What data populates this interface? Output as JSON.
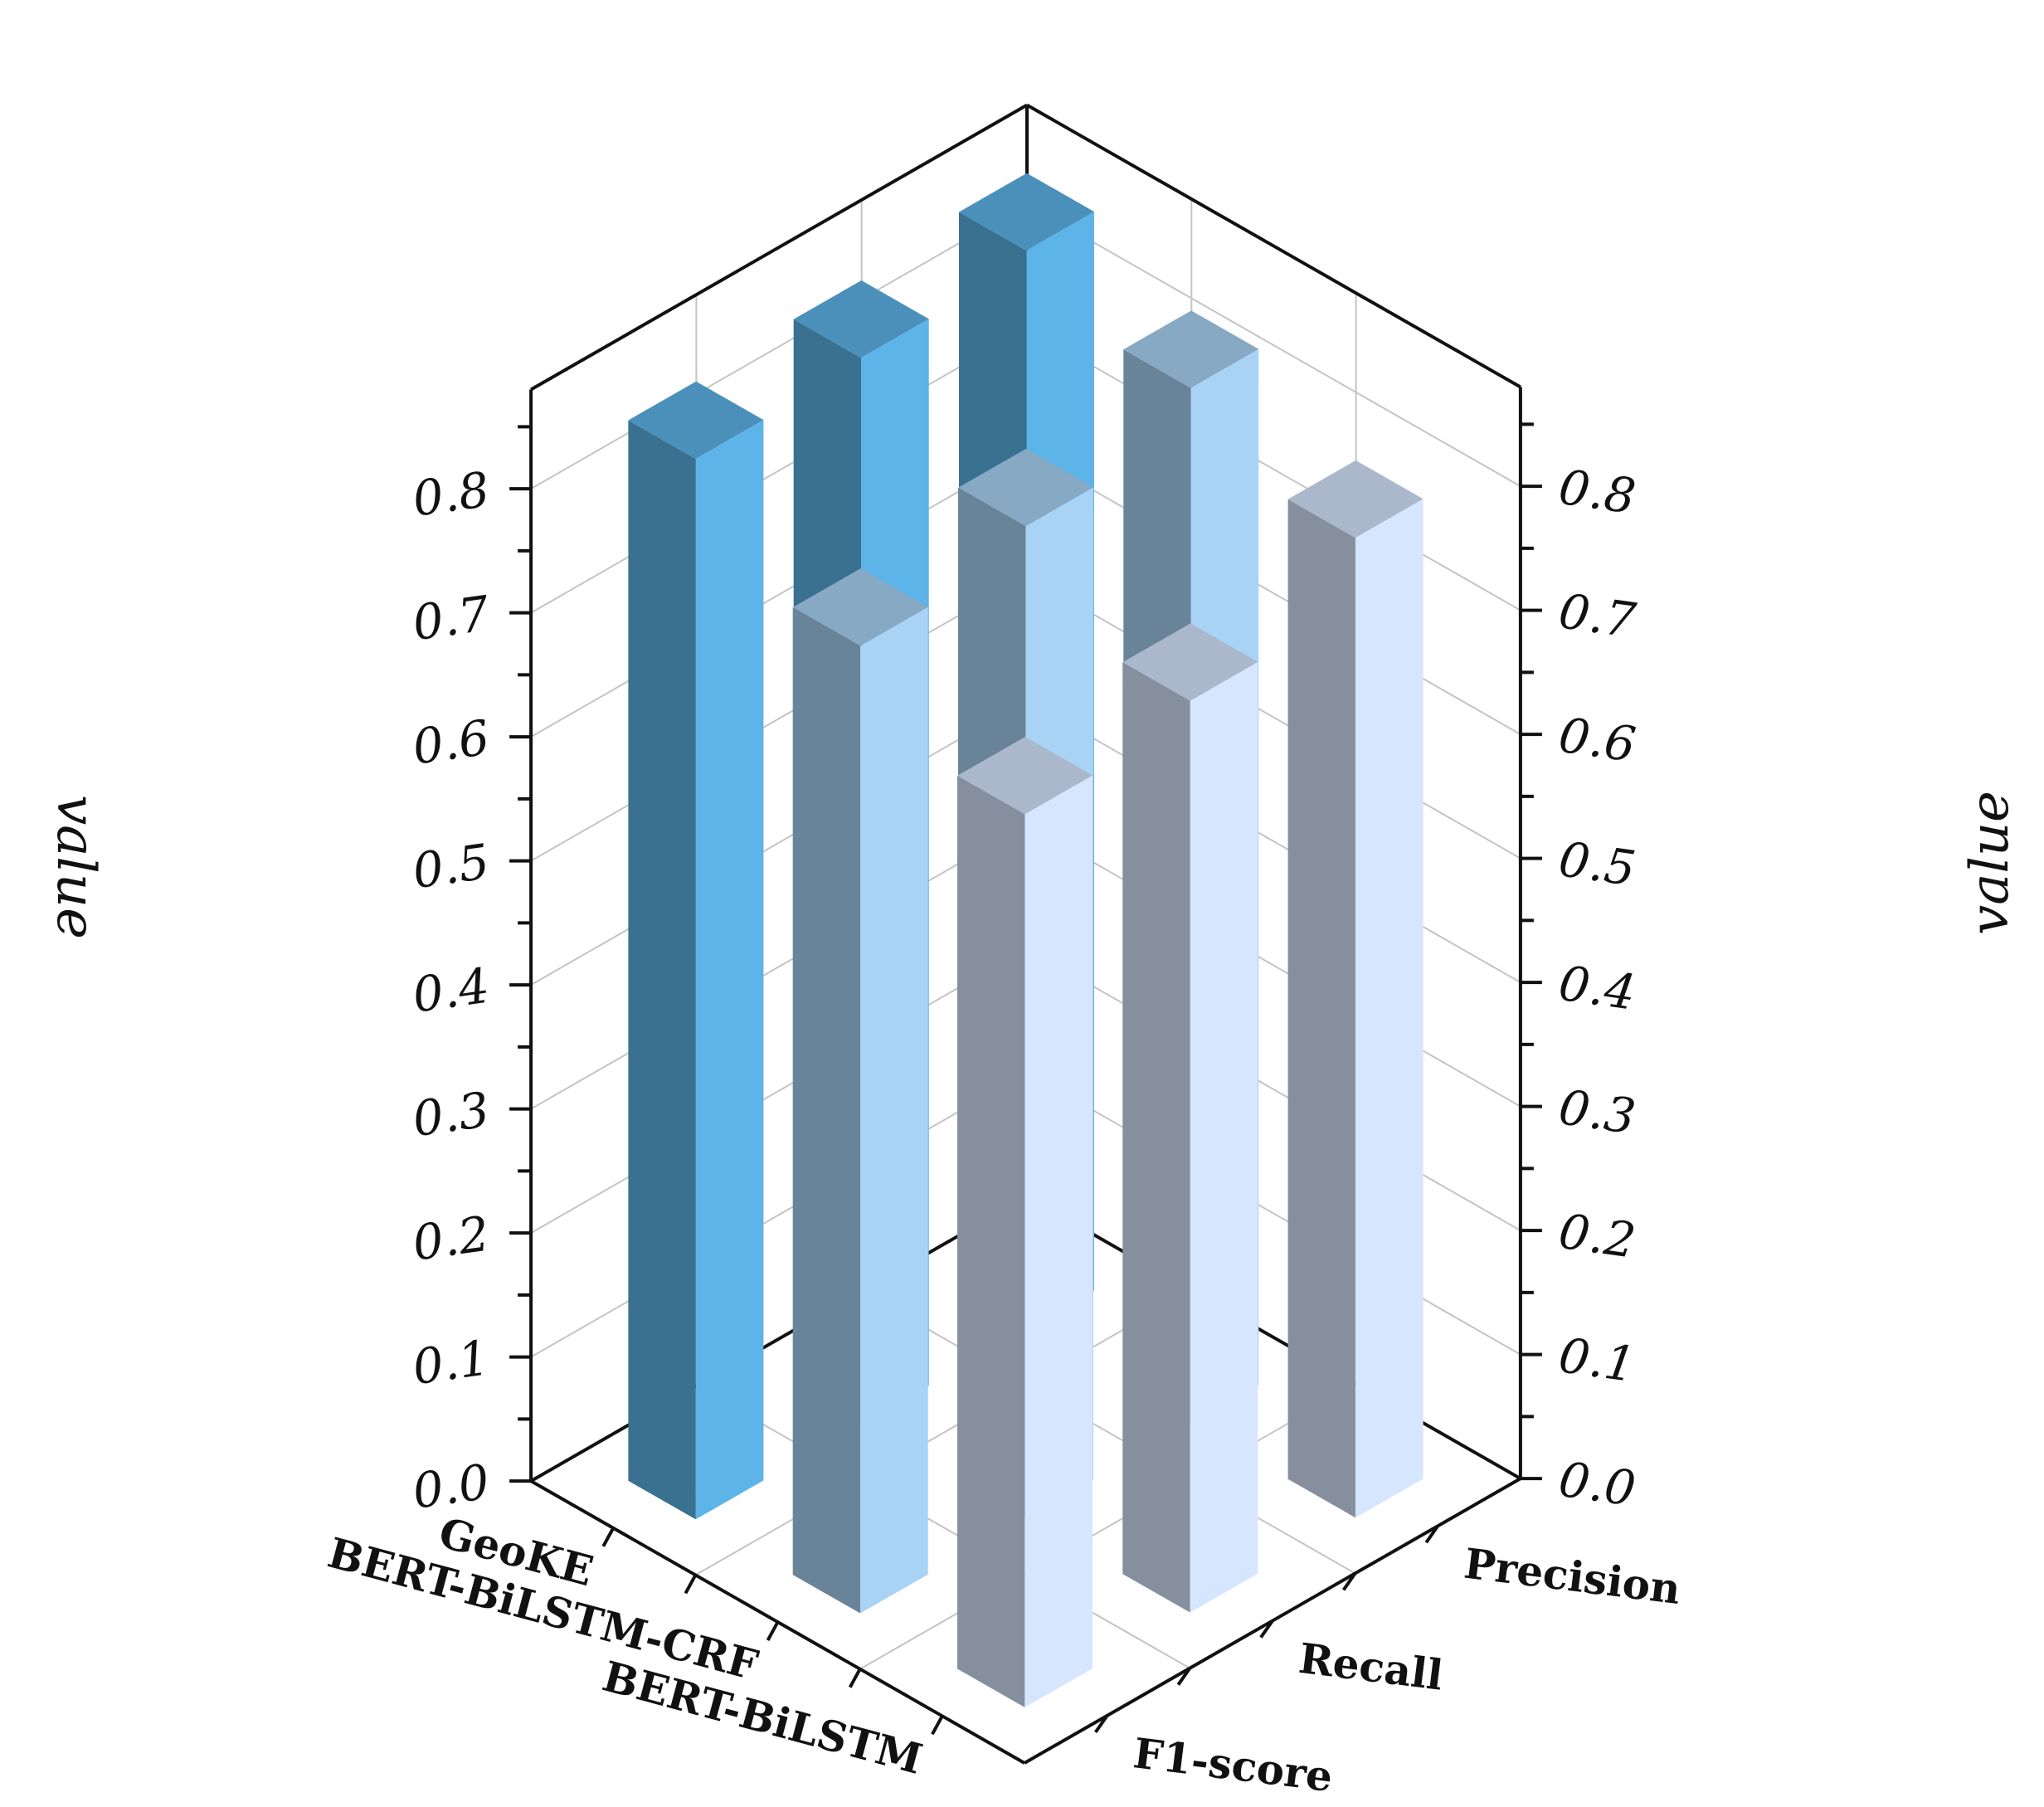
{
  "chart_data": {
    "type": "bar",
    "subtype": "3d-bar",
    "title": "",
    "categories": [
      "GeoKE",
      "BERT-BiLSTM-CRF",
      "BERT-BiLSTM"
    ],
    "metrics": [
      "Precision",
      "Recall",
      "F1-score"
    ],
    "series": [
      {
        "name": "Precision",
        "values": [
          0.87,
          0.835,
          0.79
        ]
      },
      {
        "name": "Recall",
        "values": [
          0.86,
          0.8,
          0.735
        ]
      },
      {
        "name": "F1-score",
        "values": [
          0.855,
          0.78,
          0.72
        ]
      }
    ],
    "zlabel": "value",
    "zlim": [
      0,
      0.88
    ],
    "zticks": [
      "0.0",
      "0.1",
      "0.2",
      "0.3",
      "0.4",
      "0.5",
      "0.6",
      "0.7",
      "0.8"
    ],
    "grid": true,
    "legend": "none",
    "colors": {
      "GeoKE": "#5db4e8",
      "BERT-BiLSTM-CRF": "#a9d3f5",
      "BERT-BiLSTM": "#d6e6ff"
    }
  }
}
